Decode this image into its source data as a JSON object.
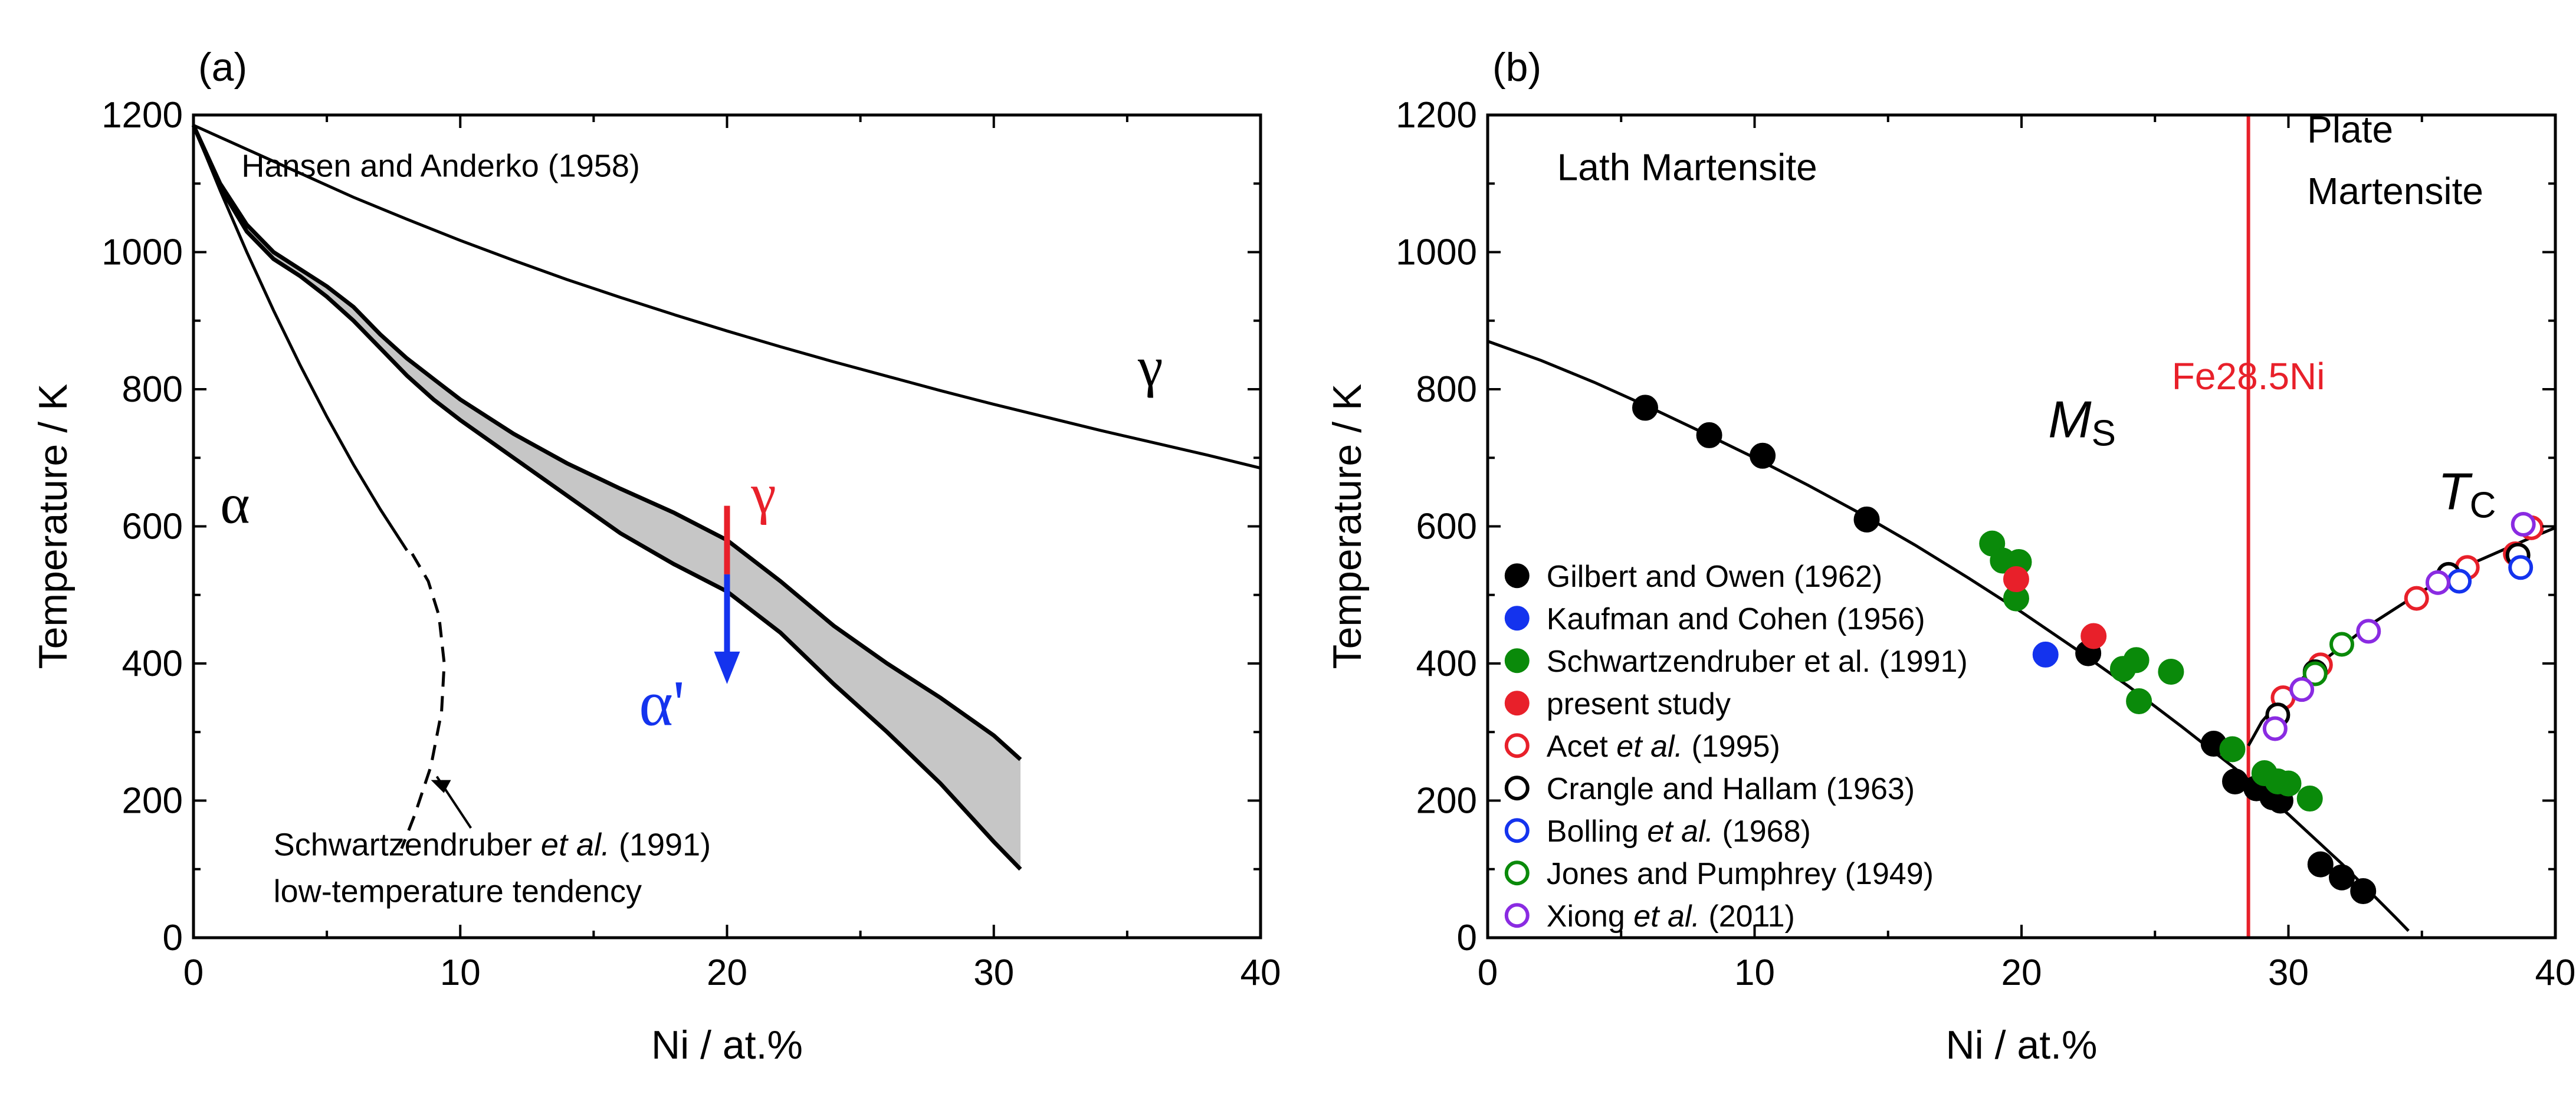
{
  "chart_data": [
    {
      "type": "line",
      "panel_label": "(a)",
      "xlabel": "Ni / at.%",
      "ylabel": "Temperature / K",
      "xlim": [
        0,
        40
      ],
      "ylim": [
        0,
        1200
      ],
      "xticks": [
        0,
        10,
        20,
        30,
        40
      ],
      "yticks": [
        0,
        200,
        400,
        600,
        800,
        1000,
        1200
      ],
      "series": [
        {
          "role": "gamma boundary",
          "points": [
            [
              0,
              1185
            ],
            [
              2,
              1150
            ],
            [
              4,
              1115
            ],
            [
              6,
              1080
            ],
            [
              8,
              1048
            ],
            [
              10,
              1017
            ],
            [
              12,
              988
            ],
            [
              14,
              960
            ],
            [
              16,
              934
            ],
            [
              18,
              909
            ],
            [
              20,
              885
            ],
            [
              22,
              862
            ],
            [
              24,
              840
            ],
            [
              26,
              819
            ],
            [
              28,
              798
            ],
            [
              30,
              778
            ],
            [
              32,
              759
            ],
            [
              34,
              740
            ],
            [
              36,
              722
            ],
            [
              38,
              704
            ],
            [
              40,
              685
            ]
          ]
        },
        {
          "role": "alpha boundary",
          "points": [
            [
              0,
              1185
            ],
            [
              1,
              1090
            ],
            [
              2,
              1000
            ],
            [
              3,
              915
            ],
            [
              4,
              835
            ],
            [
              5,
              760
            ],
            [
              6,
              690
            ],
            [
              7,
              625
            ],
            [
              8,
              565
            ]
          ]
        },
        {
          "role": "dashed low-temperature tendency",
          "points": [
            [
              8.2,
              560
            ],
            [
              8.8,
              520
            ],
            [
              9.2,
              470
            ],
            [
              9.4,
              400
            ],
            [
              9.3,
              330
            ],
            [
              8.9,
              250
            ],
            [
              8.3,
              180
            ],
            [
              7.8,
              130
            ]
          ]
        },
        {
          "role": "band upper",
          "points": [
            [
              0,
              1185
            ],
            [
              1,
              1100
            ],
            [
              2,
              1040
            ],
            [
              3,
              1000
            ],
            [
              4,
              975
            ],
            [
              5,
              950
            ],
            [
              6,
              920
            ],
            [
              7,
              880
            ],
            [
              8,
              845
            ],
            [
              9,
              815
            ],
            [
              10,
              785
            ],
            [
              12,
              735
            ],
            [
              14,
              692
            ],
            [
              16,
              655
            ],
            [
              18,
              620
            ],
            [
              20,
              580
            ],
            [
              22,
              520
            ],
            [
              24,
              455
            ],
            [
              26,
              400
            ],
            [
              28,
              350
            ],
            [
              30,
              295
            ],
            [
              31,
              260
            ]
          ]
        },
        {
          "role": "band lower",
          "points": [
            [
              0,
              1185
            ],
            [
              1,
              1095
            ],
            [
              2,
              1030
            ],
            [
              3,
              990
            ],
            [
              4,
              965
            ],
            [
              5,
              935
            ],
            [
              6,
              900
            ],
            [
              7,
              860
            ],
            [
              8,
              820
            ],
            [
              9,
              785
            ],
            [
              10,
              755
            ],
            [
              12,
              700
            ],
            [
              14,
              645
            ],
            [
              16,
              590
            ],
            [
              18,
              545
            ],
            [
              20,
              505
            ],
            [
              22,
              445
            ],
            [
              24,
              370
            ],
            [
              26,
              300
            ],
            [
              28,
              225
            ],
            [
              30,
              140
            ],
            [
              31,
              100
            ]
          ]
        }
      ],
      "arrow": {
        "x": 20,
        "y_top": 630,
        "y_split": 530,
        "y_bottom": 370,
        "top_color": "#e8202a",
        "bottom_color": "#1433ee"
      },
      "annotations": [
        {
          "text": "Hansen and Anderko (1958)",
          "x": 1.8,
          "y": 1110
        },
        {
          "text": "γ",
          "x": 35.4,
          "y": 805,
          "color": "#000000"
        },
        {
          "text": "α",
          "x": 1.0,
          "y": 605,
          "color": "#000000"
        },
        {
          "text": "γ",
          "x": 20.9,
          "y": 620,
          "color": "#e8202a"
        },
        {
          "text": "α'",
          "x": 16.7,
          "y": 310,
          "color": "#1433ee"
        },
        {
          "text": "Schwartzendruber",
          "italic_part": "et al.",
          "suffix": "(1991)",
          "x": 3.0,
          "y": 120
        },
        {
          "text": "low-temperature tendency",
          "x": 3.0,
          "y": 52
        }
      ],
      "band_fill": "#c6c6c6"
    },
    {
      "type": "scatter",
      "panel_label": "(b)",
      "xlabel": "Ni / at.%",
      "ylabel": "Temperature / K",
      "xlim": [
        0,
        40
      ],
      "ylim": [
        0,
        1200
      ],
      "xticks": [
        0,
        10,
        20,
        30,
        40
      ],
      "yticks": [
        0,
        200,
        400,
        600,
        800,
        1000,
        1200
      ],
      "vline": {
        "x": 28.5,
        "color": "#e8202a",
        "label": "Fe28.5Ni"
      },
      "region_labels": [
        "Lath Martensite",
        "Plate",
        "Martensite"
      ],
      "curve_labels": [
        {
          "main": "M",
          "sub": "S"
        },
        {
          "main": "T",
          "sub": "C"
        }
      ],
      "ms_curve": [
        [
          0,
          870
        ],
        [
          2,
          842
        ],
        [
          4,
          810
        ],
        [
          6,
          775
        ],
        [
          8,
          738
        ],
        [
          10,
          700
        ],
        [
          12,
          660
        ],
        [
          14,
          618
        ],
        [
          16,
          573
        ],
        [
          18,
          525
        ],
        [
          20,
          475
        ],
        [
          22,
          422
        ],
        [
          24,
          367
        ],
        [
          26,
          308
        ],
        [
          28,
          247
        ],
        [
          30,
          180
        ],
        [
          32,
          108
        ],
        [
          34,
          30
        ],
        [
          34.5,
          10
        ]
      ],
      "tc_curve": [
        [
          28.5,
          280
        ],
        [
          29,
          315
        ],
        [
          30,
          360
        ],
        [
          31,
          395
        ],
        [
          32,
          425
        ],
        [
          33,
          455
        ],
        [
          34,
          480
        ],
        [
          35,
          505
        ],
        [
          36,
          528
        ],
        [
          37,
          548
        ],
        [
          38,
          565
        ],
        [
          39,
          582
        ],
        [
          40,
          598
        ]
      ],
      "series": [
        {
          "name": "Gilbert and Owen (1962)",
          "marker": "filled",
          "color": "#000000",
          "points": [
            [
              5.9,
              773
            ],
            [
              8.3,
              733
            ],
            [
              10.3,
              703
            ],
            [
              14.2,
              610
            ],
            [
              22.5,
              415
            ],
            [
              27.2,
              283
            ],
            [
              28.0,
              228
            ],
            [
              28.8,
              218
            ],
            [
              29.4,
              205
            ],
            [
              29.7,
              200
            ],
            [
              31.2,
              107
            ],
            [
              32.0,
              88
            ],
            [
              32.8,
              68
            ]
          ]
        },
        {
          "name": "Kaufman and Cohen (1956)",
          "marker": "filled",
          "color": "#1433ee",
          "points": [
            [
              20.9,
              413
            ]
          ]
        },
        {
          "name": "Schwartzendruber et al. (1991)",
          "marker": "filled",
          "color": "#0a8a0a",
          "points": [
            [
              18.9,
              575
            ],
            [
              19.3,
              550
            ],
            [
              19.9,
              548
            ],
            [
              19.8,
              495
            ],
            [
              23.8,
              392
            ],
            [
              24.3,
              405
            ],
            [
              24.4,
              345
            ],
            [
              25.6,
              388
            ],
            [
              27.9,
              275
            ],
            [
              29.1,
              240
            ],
            [
              29.6,
              228
            ],
            [
              30.0,
              225
            ],
            [
              30.8,
              203
            ]
          ]
        },
        {
          "name": "present study",
          "marker": "filled",
          "color": "#e8202a",
          "points": [
            [
              19.8,
              523
            ],
            [
              22.7,
              440
            ]
          ]
        },
        {
          "name": "Acet et al. (1995)",
          "marker": "open",
          "color": "#e8202a",
          "points": [
            [
              29.8,
              350
            ],
            [
              31.2,
              398
            ],
            [
              34.8,
              495
            ],
            [
              36.7,
              540
            ],
            [
              38.5,
              560
            ],
            [
              39.1,
              598
            ]
          ]
        },
        {
          "name": "Crangle and Hallam (1963)",
          "marker": "open",
          "color": "#000000",
          "points": [
            [
              29.6,
              325
            ],
            [
              31.0,
              388
            ],
            [
              36.0,
              530
            ],
            [
              38.6,
              558
            ]
          ]
        },
        {
          "name": "Bolling et al. (1968)",
          "marker": "open",
          "color": "#1433ee",
          "points": [
            [
              36.4,
              520
            ],
            [
              38.7,
              540
            ]
          ]
        },
        {
          "name": "Jones and Pumphrey (1949)",
          "marker": "open",
          "color": "#0a8a0a",
          "points": [
            [
              31.0,
              385
            ],
            [
              32.0,
              428
            ]
          ]
        },
        {
          "name": "Xiong et al. (2011)",
          "marker": "open",
          "color": "#8a2be2",
          "points": [
            [
              29.5,
              305
            ],
            [
              30.5,
              362
            ],
            [
              33.0,
              447
            ],
            [
              35.6,
              518
            ],
            [
              38.8,
              603
            ]
          ]
        }
      ],
      "legend": [
        {
          "marker": "filled",
          "color": "#000000",
          "text": "Gilbert and Owen (1962)"
        },
        {
          "marker": "filled",
          "color": "#1433ee",
          "text": "Kaufman and Cohen (1956)"
        },
        {
          "marker": "filled",
          "color": "#0a8a0a",
          "text": "Schwartzendruber et al. (1991)"
        },
        {
          "marker": "filled",
          "color": "#e8202a",
          "text": "present study"
        },
        {
          "marker": "open",
          "color": "#e8202a",
          "pre": "Acet ",
          "italic": "et al.",
          "post": " (1995)"
        },
        {
          "marker": "open",
          "color": "#000000",
          "text": "Crangle and Hallam (1963)"
        },
        {
          "marker": "open",
          "color": "#1433ee",
          "pre": "Bolling ",
          "italic": "et al.",
          "post": " (1968)"
        },
        {
          "marker": "open",
          "color": "#0a8a0a",
          "text": "Jones and Pumphrey (1949)"
        },
        {
          "marker": "open",
          "color": "#8a2be2",
          "pre": "Xiong ",
          "italic": "et al.",
          "post": " (2011)"
        }
      ]
    }
  ]
}
